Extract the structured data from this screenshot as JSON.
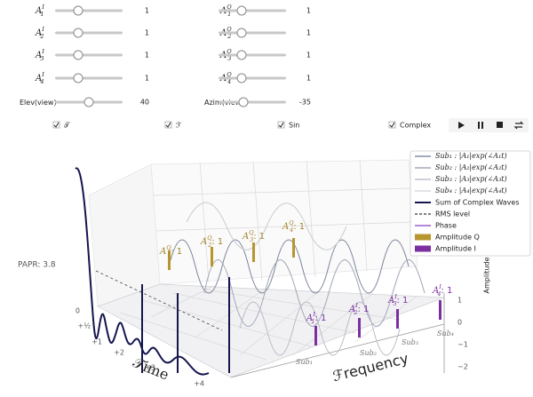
{
  "controls": {
    "sliders_left": [
      {
        "symbol": "A",
        "sup": "I",
        "sub": "1",
        "value": 1
      },
      {
        "symbol": "A",
        "sup": "I",
        "sub": "2",
        "value": 1
      },
      {
        "symbol": "A",
        "sup": "I",
        "sub": "3",
        "value": 1
      },
      {
        "symbol": "A",
        "sup": "I",
        "sub": "4",
        "value": 1
      },
      {
        "symbol": "Elev(view)",
        "value": 40
      }
    ],
    "sliders_right": [
      {
        "symbol": "A",
        "sup": "Q",
        "sub": "1",
        "value": 1
      },
      {
        "symbol": "A",
        "sup": "Q",
        "sub": "2",
        "value": 1
      },
      {
        "symbol": "A",
        "sup": "Q",
        "sub": "3",
        "value": 1
      },
      {
        "symbol": "A",
        "sup": "Q",
        "sub": "4",
        "value": 1
      },
      {
        "symbol": "Azim(view)",
        "value": -35
      }
    ],
    "checkboxes": [
      {
        "label": "𝒯",
        "checked": true
      },
      {
        "label": "ℱ",
        "checked": true
      },
      {
        "label": "Sin",
        "checked": true
      },
      {
        "label": "Complex",
        "checked": true
      }
    ]
  },
  "plot": {
    "legend": [
      {
        "label": "Sub₁ : |A₁|exp(∠A₁t)",
        "style": "line",
        "color": "#6f7890"
      },
      {
        "label": "Sub₂ : |A₂|exp(∠A₂t)",
        "style": "line",
        "color": "#8f96a8"
      },
      {
        "label": "Sub₃ : |A₃|exp(∠A₃t)",
        "style": "line",
        "color": "#b0b5c2"
      },
      {
        "label": "Sub₄ : |A₄|exp(∠A₄t)",
        "style": "line",
        "color": "#cdd0d8"
      },
      {
        "label": "Sum of Complex Waves",
        "style": "thick",
        "color": "#15154f"
      },
      {
        "label": "RMS level",
        "style": "dashed",
        "color": "#333333"
      },
      {
        "label": "Phase",
        "style": "line",
        "color": "#8a3fbf"
      },
      {
        "label": "Amplitude Q",
        "style": "bar",
        "color": "#b8962e"
      },
      {
        "label": "Amplitude I",
        "style": "bar",
        "color": "#7b2fa0"
      }
    ],
    "papr": "PAPR: 3.8",
    "amplitude_label": "Amplitude",
    "time_label": "𝒯ime",
    "frequency_label": "ℱrequency",
    "amplitude_ticks": [
      "1",
      "0",
      "−1",
      "−2"
    ],
    "time_ticks": [
      "0",
      "+½",
      "+1",
      "+2",
      "+3",
      "+4"
    ],
    "subcarriers": [
      "Sub₁",
      "Sub₂",
      "Sub₃",
      "Sub₄"
    ],
    "q_labels": [
      {
        "symbol": "A",
        "sup": "Q",
        "sub": "1",
        "text": ": 1"
      },
      {
        "symbol": "A",
        "sup": "Q",
        "sub": "2",
        "text": ": 1"
      },
      {
        "symbol": "A",
        "sup": "Q",
        "sub": "3",
        "text": ": 1"
      },
      {
        "symbol": "A",
        "sup": "Q",
        "sub": "4",
        "text": ": 1"
      }
    ],
    "i_labels": [
      {
        "symbol": "A",
        "sup": "I",
        "sub": "1",
        "text": ": 1"
      },
      {
        "symbol": "A",
        "sup": "I",
        "sub": "2",
        "text": ": 1"
      },
      {
        "symbol": "A",
        "sup": "I",
        "sub": "3",
        "text": ": 1"
      },
      {
        "symbol": "A",
        "sup": "I",
        "sub": "4",
        "text": ": 1"
      }
    ]
  }
}
